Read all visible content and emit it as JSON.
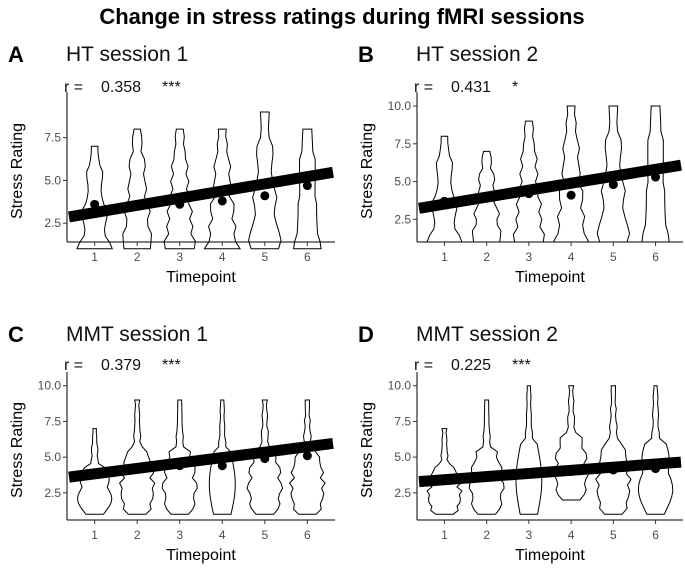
{
  "title": "Change in stress ratings during fMRI sessions",
  "chart_data": [
    {
      "type": "violin",
      "letter": "A",
      "title": "HT session 1",
      "r_label": "r =",
      "r_value": "0.358",
      "significance": "***",
      "xlabel": "Timepoint",
      "ylabel": "Stress Rating",
      "categories": [
        "1",
        "2",
        "3",
        "4",
        "5",
        "6"
      ],
      "ylim": [
        1.4,
        9.7
      ],
      "yticks": [
        2.5,
        5.0,
        7.5
      ],
      "ytick_labels": [
        "2.5",
        "5.0",
        "7.5"
      ],
      "ranges": [
        [
          1,
          7
        ],
        [
          1,
          8
        ],
        [
          1,
          8
        ],
        [
          1,
          8
        ],
        [
          1,
          9
        ],
        [
          1,
          8
        ]
      ],
      "means": [
        3.6,
        3.5,
        3.6,
        3.8,
        4.1,
        4.7
      ],
      "regression": {
        "intercept": 2.7,
        "slope": 0.42
      },
      "shape": "blocky"
    },
    {
      "type": "violin",
      "letter": "B",
      "title": "HT session 2",
      "r_label": "r =",
      "r_value": "0.431",
      "significance": "*",
      "xlabel": "Timepoint",
      "ylabel": "Stress Rating",
      "categories": [
        "1",
        "2",
        "3",
        "4",
        "5",
        "6"
      ],
      "ylim": [
        1.0,
        10.4
      ],
      "yticks": [
        2.5,
        5.0,
        7.5,
        10.0
      ],
      "ytick_labels": [
        "2.5",
        "5.0",
        "7.5",
        "10.0"
      ],
      "ranges": [
        [
          1,
          8
        ],
        [
          1,
          7
        ],
        [
          1,
          9
        ],
        [
          1,
          10
        ],
        [
          1,
          10
        ],
        [
          1,
          10
        ]
      ],
      "means": [
        3.7,
        3.9,
        4.2,
        4.1,
        4.8,
        5.3
      ],
      "regression": {
        "intercept": 3.05,
        "slope": 0.46
      },
      "shape": "blocky"
    },
    {
      "type": "violin",
      "letter": "C",
      "title": "MMT session 1",
      "r_label": "r =",
      "r_value": "0.379",
      "significance": "***",
      "xlabel": "Timepoint",
      "ylabel": "Stress Rating",
      "categories": [
        "1",
        "2",
        "3",
        "4",
        "5",
        "6"
      ],
      "ylim": [
        0.6,
        10.4
      ],
      "yticks": [
        2.5,
        5.0,
        7.5,
        10.0
      ],
      "ytick_labels": [
        "2.5",
        "5.0",
        "7.5",
        "10.0"
      ],
      "ranges": [
        [
          1,
          7
        ],
        [
          1,
          9
        ],
        [
          1,
          9
        ],
        [
          1,
          9
        ],
        [
          1,
          9
        ],
        [
          1,
          9
        ]
      ],
      "means": [
        3.9,
        4.2,
        4.4,
        4.4,
        4.9,
        5.1
      ],
      "regression": {
        "intercept": 3.45,
        "slope": 0.38
      },
      "shape": "wobbly"
    },
    {
      "type": "violin",
      "letter": "D",
      "title": "MMT session 2",
      "r_label": "r =",
      "r_value": "0.225",
      "significance": "***",
      "xlabel": "Timepoint",
      "ylabel": "Stress Rating",
      "categories": [
        "1",
        "2",
        "3",
        "4",
        "5",
        "6"
      ],
      "ylim": [
        0.6,
        10.4
      ],
      "yticks": [
        2.5,
        5.0,
        7.5,
        10.0
      ],
      "ytick_labels": [
        "2.5",
        "5.0",
        "7.5",
        "10.0"
      ],
      "ranges": [
        [
          1,
          7
        ],
        [
          1,
          9
        ],
        [
          1,
          10
        ],
        [
          2,
          10
        ],
        [
          1,
          10
        ],
        [
          1,
          10
        ]
      ],
      "means": [
        3.4,
        3.7,
        3.9,
        4.0,
        4.1,
        4.2
      ],
      "regression": {
        "intercept": 3.2,
        "slope": 0.22
      },
      "shape": "wobbly"
    }
  ]
}
